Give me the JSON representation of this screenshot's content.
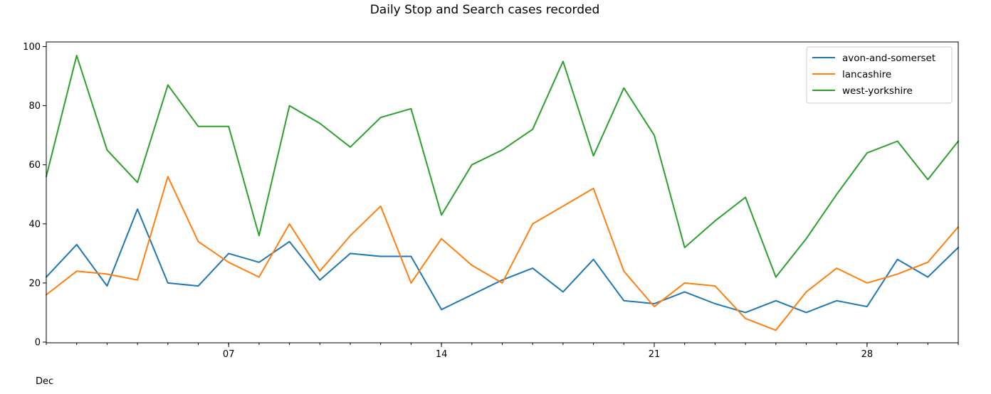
{
  "chart_data": {
    "type": "line",
    "title": "Daily Stop and Search cases recorded",
    "xlabel": "",
    "ylabel": "",
    "x": [
      1,
      2,
      3,
      4,
      5,
      6,
      7,
      8,
      9,
      10,
      11,
      12,
      13,
      14,
      15,
      16,
      17,
      18,
      19,
      20,
      21,
      22,
      23,
      24,
      25,
      26,
      27,
      28,
      29,
      30,
      31
    ],
    "xlim": [
      1,
      31
    ],
    "ylim": [
      0,
      101
    ],
    "yticks": [
      0,
      20,
      40,
      60,
      80,
      100
    ],
    "xticks": [
      {
        "value": 7,
        "label": "07"
      },
      {
        "value": 14,
        "label": "14"
      },
      {
        "value": 21,
        "label": "21"
      },
      {
        "value": 28,
        "label": "28"
      }
    ],
    "month_label": "Dec",
    "grid": false,
    "legend_position": "top-right",
    "series": [
      {
        "name": "avon-and-somerset",
        "color": "#1f77b4",
        "values": [
          22,
          33,
          19,
          45,
          20,
          19,
          30,
          27,
          34,
          21,
          30,
          29,
          29,
          11,
          16,
          21,
          25,
          17,
          28,
          14,
          13,
          17,
          13,
          10,
          14,
          10,
          14,
          12,
          28,
          22,
          32
        ]
      },
      {
        "name": "lancashire",
        "color": "#ff7f0e",
        "values": [
          16,
          24,
          23,
          21,
          56,
          34,
          27,
          22,
          40,
          24,
          36,
          46,
          20,
          35,
          26,
          20,
          40,
          46,
          52,
          24,
          12,
          20,
          19,
          8,
          4,
          17,
          25,
          20,
          23,
          27,
          39
        ]
      },
      {
        "name": "west-yorkshire",
        "color": "#2ca02c",
        "values": [
          56,
          97,
          65,
          54,
          87,
          73,
          73,
          36,
          80,
          74,
          66,
          76,
          79,
          43,
          60,
          65,
          72,
          95,
          63,
          86,
          70,
          32,
          41,
          49,
          22,
          35,
          50,
          64,
          68,
          55,
          68
        ]
      }
    ]
  }
}
